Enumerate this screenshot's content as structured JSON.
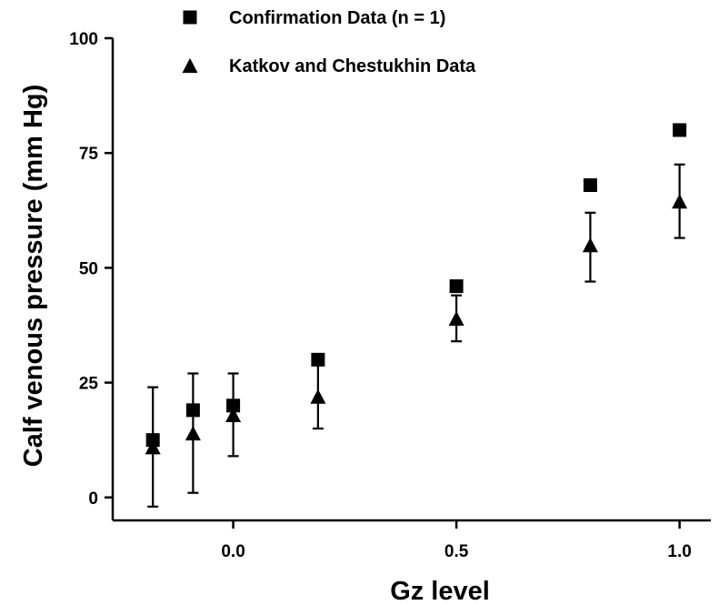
{
  "chart_data": {
    "type": "scatter",
    "title": "",
    "xlabel": "Gz level",
    "ylabel": "Calf venous pressure (mm Hg)",
    "xlim": [
      -0.27,
      1.07
    ],
    "ylim": [
      -5,
      100
    ],
    "x_ticks": [
      0.0,
      0.5,
      1.0
    ],
    "x_tick_labels": [
      "0.0",
      "0.5",
      "1.0"
    ],
    "y_ticks": [
      0,
      25,
      50,
      75,
      100
    ],
    "y_tick_labels": [
      "0",
      "25",
      "50",
      "75",
      "100"
    ],
    "grid": false,
    "legend_position": "top",
    "series": [
      {
        "name": "Confirmation Data (n = 1)",
        "marker": "square",
        "points": [
          {
            "x": -0.18,
            "y": 12.5
          },
          {
            "x": -0.09,
            "y": 19
          },
          {
            "x": 0.0,
            "y": 20
          },
          {
            "x": 0.19,
            "y": 30
          },
          {
            "x": 0.5,
            "y": 46
          },
          {
            "x": 0.8,
            "y": 68
          },
          {
            "x": 1.0,
            "y": 80
          }
        ]
      },
      {
        "name": "Katkov and Chestukhin Data",
        "marker": "triangle",
        "points": [
          {
            "x": -0.18,
            "y": 11,
            "err_low": 13,
            "err_high": 13
          },
          {
            "x": -0.09,
            "y": 14,
            "err_low": 13,
            "err_high": 13
          },
          {
            "x": 0.0,
            "y": 18,
            "err_low": 9,
            "err_high": 9
          },
          {
            "x": 0.19,
            "y": 22,
            "err_low": 7,
            "err_high": 7
          },
          {
            "x": 0.5,
            "y": 39,
            "err_low": 5,
            "err_high": 5
          },
          {
            "x": 0.8,
            "y": 55,
            "err_low": 8,
            "err_high": 7
          },
          {
            "x": 1.0,
            "y": 64.5,
            "err_low": 8,
            "err_high": 8
          }
        ]
      }
    ]
  }
}
